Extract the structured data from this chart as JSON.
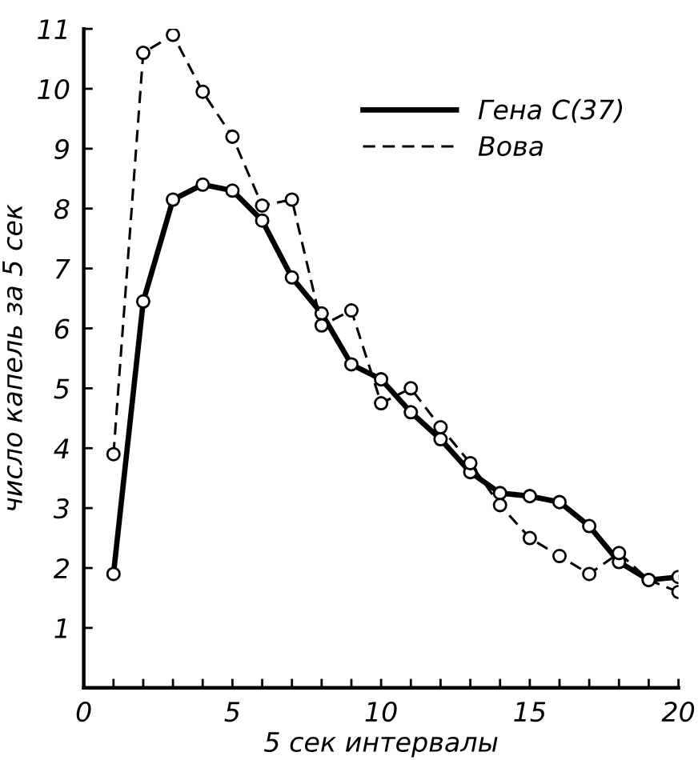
{
  "chart_data": {
    "type": "line",
    "xlabel": "5 сек интервалы",
    "ylabel": "число капель за 5 сек",
    "x": [
      1,
      2,
      3,
      4,
      5,
      6,
      7,
      8,
      9,
      10,
      11,
      12,
      13,
      14,
      15,
      16,
      17,
      18,
      19,
      20
    ],
    "series": [
      {
        "name": "Гена С(37)",
        "color": "#000000",
        "line_style": "solid",
        "values": [
          1.9,
          6.45,
          8.15,
          8.4,
          8.3,
          7.8,
          6.85,
          6.25,
          5.4,
          5.15,
          4.6,
          4.15,
          3.6,
          3.25,
          3.2,
          3.1,
          2.7,
          2.1,
          1.8,
          1.85
        ]
      },
      {
        "name": "Вова",
        "color": "#000000",
        "line_style": "dashed",
        "values": [
          3.9,
          10.6,
          10.9,
          9.95,
          9.2,
          8.05,
          8.15,
          6.05,
          6.3,
          4.75,
          5.0,
          4.35,
          3.75,
          3.05,
          2.5,
          2.2,
          1.9,
          2.25,
          1.8,
          1.6
        ]
      }
    ],
    "xlim": [
      0,
      20
    ],
    "ylim": [
      0,
      11
    ],
    "xticks": [
      0,
      {
        "value": 1,
        "label": null
      },
      {
        "value": 2,
        "label": null
      },
      {
        "value": 3,
        "label": null
      },
      {
        "value": 4,
        "label": null
      },
      5,
      {
        "value": 6,
        "label": null
      },
      {
        "value": 7,
        "label": null
      },
      {
        "value": 8,
        "label": null
      },
      {
        "value": 9,
        "label": null
      },
      10,
      {
        "value": 11,
        "label": null
      },
      {
        "value": 12,
        "label": null
      },
      {
        "value": 13,
        "label": null
      },
      {
        "value": 14,
        "label": null
      },
      15,
      {
        "value": 16,
        "label": null
      },
      {
        "value": 17,
        "label": null
      },
      {
        "value": 18,
        "label": null
      },
      {
        "value": 19,
        "label": null
      },
      20
    ],
    "yticks": [
      1,
      2,
      3,
      4,
      5,
      6,
      7,
      8,
      9,
      10,
      11
    ],
    "marker": "circle",
    "legend": "top right"
  }
}
